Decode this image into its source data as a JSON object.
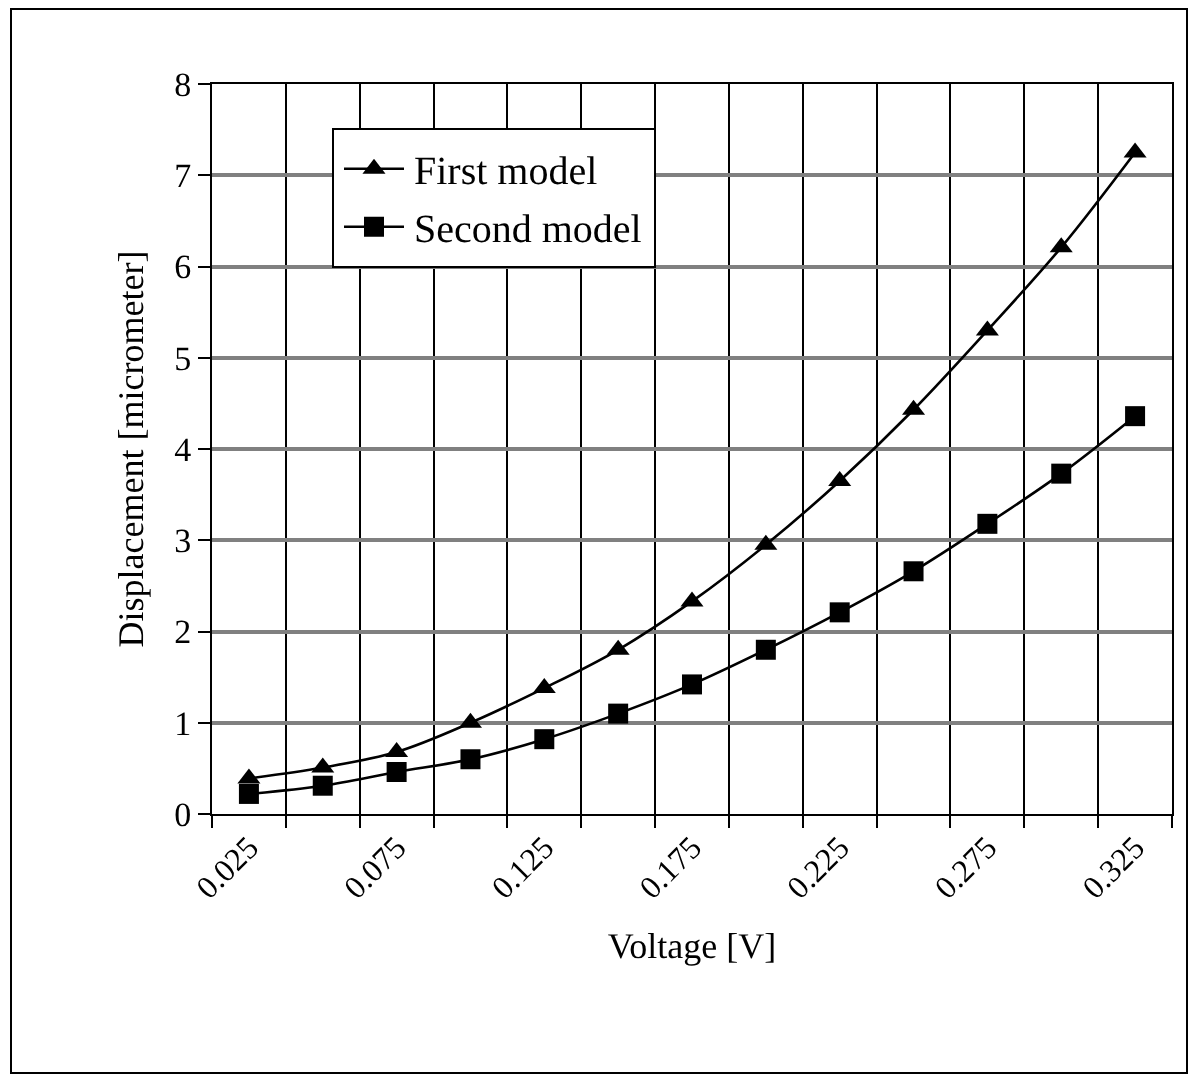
{
  "chart_data": {
    "type": "line",
    "xlabel": "Voltage [V]",
    "ylabel": "Displacement [micrometer]",
    "categories": [
      "0.025",
      null,
      "0.075",
      null,
      "0.125",
      null,
      "0.175",
      null,
      "0.225",
      null,
      "0.275",
      null,
      "0.325"
    ],
    "series": [
      {
        "name": "First model",
        "color": "#000000",
        "marker": "triangle",
        "values": [
          0.39,
          0.51,
          0.68,
          1.0,
          1.38,
          1.8,
          2.33,
          2.95,
          3.65,
          4.43,
          5.3,
          6.21,
          7.25
        ]
      },
      {
        "name": "Second model",
        "color": "#000000",
        "marker": "square",
        "values": [
          0.22,
          0.31,
          0.46,
          0.6,
          0.82,
          1.1,
          1.42,
          1.8,
          2.21,
          2.66,
          3.18,
          3.73,
          4.36
        ]
      }
    ],
    "ylim": [
      0,
      8
    ],
    "yticks": [
      0,
      1,
      2,
      3,
      4,
      5,
      6,
      7,
      8
    ],
    "grid": true,
    "legend": "top left",
    "line_style": "solid"
  }
}
